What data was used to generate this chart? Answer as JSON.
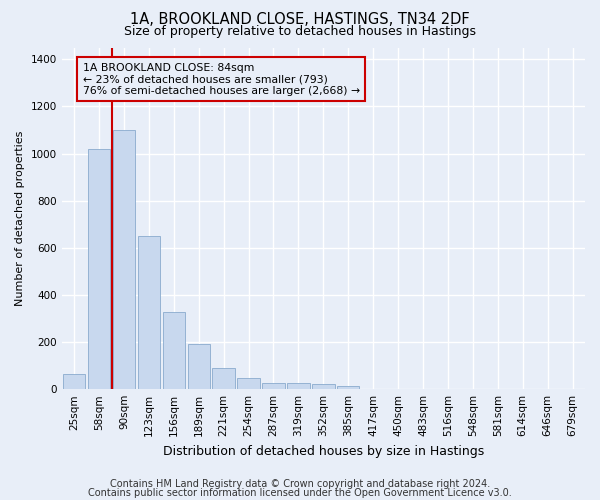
{
  "title1": "1A, BROOKLAND CLOSE, HASTINGS, TN34 2DF",
  "title2": "Size of property relative to detached houses in Hastings",
  "xlabel": "Distribution of detached houses by size in Hastings",
  "ylabel": "Number of detached properties",
  "categories": [
    "25sqm",
    "58sqm",
    "90sqm",
    "123sqm",
    "156sqm",
    "189sqm",
    "221sqm",
    "254sqm",
    "287sqm",
    "319sqm",
    "352sqm",
    "385sqm",
    "417sqm",
    "450sqm",
    "483sqm",
    "516sqm",
    "548sqm",
    "581sqm",
    "614sqm",
    "646sqm",
    "679sqm"
  ],
  "values": [
    65,
    1020,
    1100,
    648,
    328,
    192,
    88,
    48,
    28,
    25,
    20,
    12,
    0,
    0,
    0,
    0,
    0,
    0,
    0,
    0,
    0
  ],
  "bar_color": "#c8d8ee",
  "bar_edge_color": "#8aabce",
  "vline_color": "#cc0000",
  "vline_pos": 1.5,
  "annotation_text": "1A BROOKLAND CLOSE: 84sqm\n← 23% of detached houses are smaller (793)\n76% of semi-detached houses are larger (2,668) →",
  "annotation_box_color": "#cc0000",
  "ylim": [
    0,
    1450
  ],
  "yticks": [
    0,
    200,
    400,
    600,
    800,
    1000,
    1200,
    1400
  ],
  "footer1": "Contains HM Land Registry data © Crown copyright and database right 2024.",
  "footer2": "Contains public sector information licensed under the Open Government Licence v3.0.",
  "background_color": "#e8eef8",
  "grid_color": "#ffffff",
  "title1_fontsize": 10.5,
  "title2_fontsize": 9,
  "xlabel_fontsize": 9,
  "ylabel_fontsize": 8,
  "tick_fontsize": 7.5,
  "footer_fontsize": 7
}
